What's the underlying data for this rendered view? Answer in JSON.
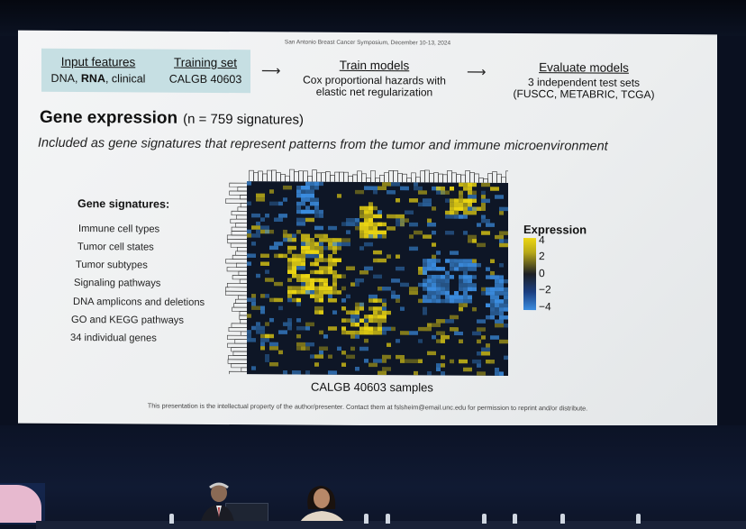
{
  "conference": "San Antonio Breast Cancer Symposium, December 10-13, 2024",
  "input_features": {
    "heading": "Input features",
    "value_pre": "DNA, ",
    "value_bold": "RNA",
    "value_post": ", clinical"
  },
  "training_set": {
    "heading": "Training set",
    "value": "CALGB 40603"
  },
  "arrows": [
    "⟶",
    "⟶"
  ],
  "train_models": {
    "heading": "Train models",
    "line1": "Cox proportional hazards with",
    "line2": "elastic net regularization"
  },
  "evaluate_models": {
    "heading": "Evaluate models",
    "line1": "3 independent test sets",
    "line2": "(FUSCC, METABRIC, TCGA)"
  },
  "title": "Gene expression",
  "title_n": "(n = 759 signatures)",
  "subtitle": "Included as gene signatures that represent patterns from the tumor and immune microenvironment",
  "gene_signatures": {
    "heading": "Gene signatures:",
    "items": [
      "Immune cell types",
      "Tumor cell states",
      "Tumor subtypes",
      "Signaling pathways",
      "DNA amplicons and deletions",
      "GO and KEGG pathways",
      "34 individual genes"
    ]
  },
  "heatmap": {
    "xlabel": "CALGB 40603 samples"
  },
  "legend": {
    "title": "Expression",
    "ticks": [
      "4",
      "2",
      "0",
      "−2",
      "−4"
    ]
  },
  "footer": "This presentation is the intellectual property of the author/presenter. Contact them at fslsheim@email.unc.edu for permission to reprint and/or distribute.",
  "colors": {
    "feature_box": "#c6dfe3",
    "high": "#ecd612",
    "low": "#3b8de0",
    "mid": "#1d1f24"
  }
}
